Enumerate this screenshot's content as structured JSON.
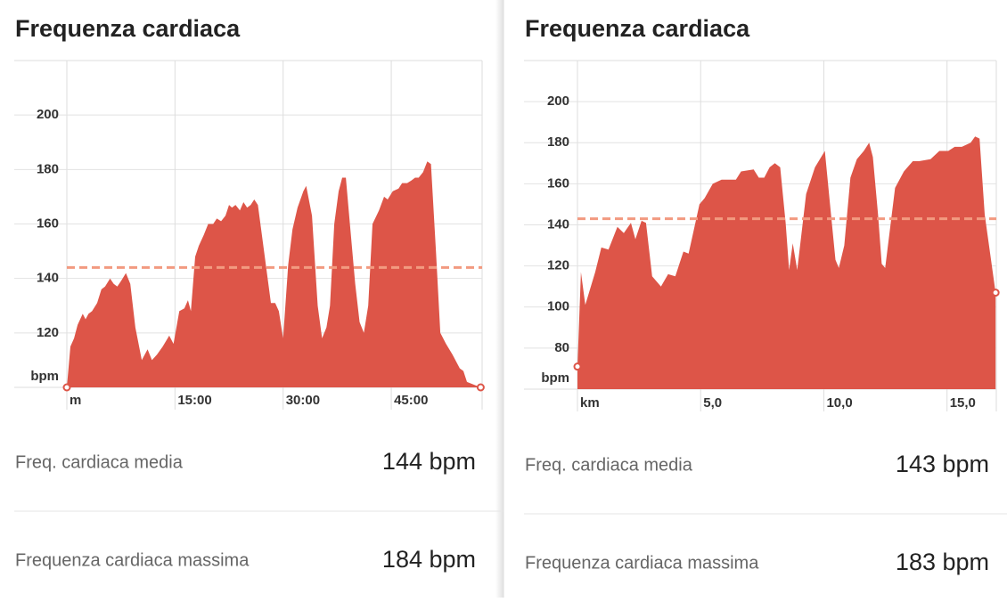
{
  "chart_data": [
    {
      "type": "area",
      "title": "Frequenza cardiaca",
      "x_label": "m",
      "y_label": "bpm",
      "color": "#dd5548",
      "average_line": 144,
      "average_color": "#f29a80",
      "x": [
        0,
        0.5,
        1,
        1.5,
        2.2,
        2.6,
        3,
        3.5,
        4.2,
        4.8,
        5.3,
        6,
        6.5,
        7,
        7.5,
        8.2,
        8.8,
        9.5,
        10.4,
        11.2,
        11.8,
        12.5,
        13.3,
        14.2,
        14.8,
        15.6,
        16.3,
        16.8,
        17.2,
        17.8,
        18.3,
        19,
        19.6,
        20.3,
        20.8,
        21.4,
        22,
        22.5,
        22.9,
        23.4,
        24,
        24.5,
        25,
        25.5,
        26,
        26.5,
        28.3,
        28.9,
        29.4,
        30,
        30.7,
        31.3,
        32,
        32.8,
        33.2,
        34,
        34.8,
        35.4,
        36,
        36.5,
        37.1,
        37.7,
        38.2,
        38.7,
        39.2,
        40,
        40.6,
        41.2,
        41.8,
        42.4,
        43.3,
        44,
        44.5,
        45.2,
        46,
        46.5,
        47.2,
        47.8,
        48.3,
        48.8,
        49.4,
        50,
        50.5,
        51.2,
        51.8,
        52.6,
        53.5,
        54.5,
        55,
        55.5,
        57.4
      ],
      "values": [
        100,
        115,
        118,
        123,
        127,
        125,
        127,
        128,
        131,
        136,
        137,
        140,
        138,
        137,
        139,
        142,
        138,
        122,
        110,
        114,
        110,
        112,
        115,
        119,
        116,
        128,
        129,
        132,
        128,
        148,
        152,
        156,
        160,
        160,
        162,
        161,
        163,
        167,
        166,
        167,
        165,
        168,
        166,
        167,
        169,
        167,
        131,
        131,
        128,
        118,
        145,
        158,
        166,
        172,
        174,
        163,
        130,
        118,
        122,
        130,
        160,
        172,
        177,
        177,
        162,
        138,
        124,
        120,
        130,
        160,
        165,
        170,
        169,
        172,
        173,
        175,
        175,
        176,
        177,
        177,
        179,
        183,
        182,
        150,
        120,
        116,
        112,
        107,
        106,
        102,
        100
      ],
      "xlim": [
        0,
        57.6
      ],
      "ylim": [
        100,
        220
      ],
      "xticks": [
        {
          "value": 15,
          "label": "15:00"
        },
        {
          "value": 30,
          "label": "30:00"
        },
        {
          "value": 45,
          "label": "45:00"
        }
      ],
      "yticks": [
        120,
        140,
        160,
        180,
        200
      ],
      "grid": true
    },
    {
      "type": "area",
      "title": "Frequenza cardiaca",
      "x_label": "km",
      "y_label": "bpm",
      "color": "#dd5548",
      "average_line": 143,
      "average_color": "#f29a80",
      "x": [
        0,
        0.14,
        0.32,
        0.72,
        0.97,
        1.26,
        1.62,
        1.88,
        2.17,
        2.35,
        2.6,
        2.78,
        3.03,
        3.39,
        3.68,
        3.97,
        4.3,
        4.51,
        4.95,
        5.16,
        5.49,
        5.85,
        6.43,
        6.64,
        7.15,
        7.36,
        7.58,
        7.8,
        8.01,
        8.23,
        8.45,
        8.59,
        8.74,
        8.92,
        9.28,
        9.64,
        10.04,
        10.25,
        10.47,
        10.61,
        10.83,
        11.08,
        11.34,
        11.62,
        11.84,
        11.99,
        12.2,
        12.35,
        12.49,
        12.89,
        13.25,
        13.61,
        13.86,
        14.33,
        14.69,
        15.05,
        15.31,
        15.6,
        15.96,
        16.14,
        16.32,
        16.53,
        16.97
      ],
      "values": [
        71,
        117,
        101,
        117,
        129,
        128,
        139,
        136,
        141,
        133,
        142,
        141,
        115,
        110,
        116,
        115,
        127,
        126,
        150,
        153,
        160,
        162,
        162,
        166,
        167,
        163,
        163,
        168,
        170,
        168,
        141,
        118,
        131,
        118,
        155,
        168,
        176,
        150,
        123,
        119,
        130,
        163,
        172,
        176,
        180,
        173,
        145,
        121,
        119,
        158,
        166,
        171,
        171,
        172,
        176,
        176,
        178,
        178,
        180,
        183,
        182,
        145,
        107
      ],
      "xlim": [
        0,
        17
      ],
      "ylim": [
        60,
        220
      ],
      "xticks": [
        {
          "value": 5,
          "label": "5,0"
        },
        {
          "value": 10,
          "label": "10,0"
        },
        {
          "value": 15,
          "label": "15,0"
        }
      ],
      "yticks": [
        80,
        100,
        120,
        140,
        160,
        180,
        200
      ],
      "grid": true
    }
  ],
  "stats": [
    [
      {
        "label": "Freq. cardiaca media",
        "value": "144 bpm"
      },
      {
        "label": "Frequenza cardiaca massima",
        "value": "184 bpm"
      }
    ],
    [
      {
        "label": "Freq. cardiaca media",
        "value": "143 bpm"
      },
      {
        "label": "Frequenza cardiaca massima",
        "value": "183 bpm"
      }
    ]
  ]
}
